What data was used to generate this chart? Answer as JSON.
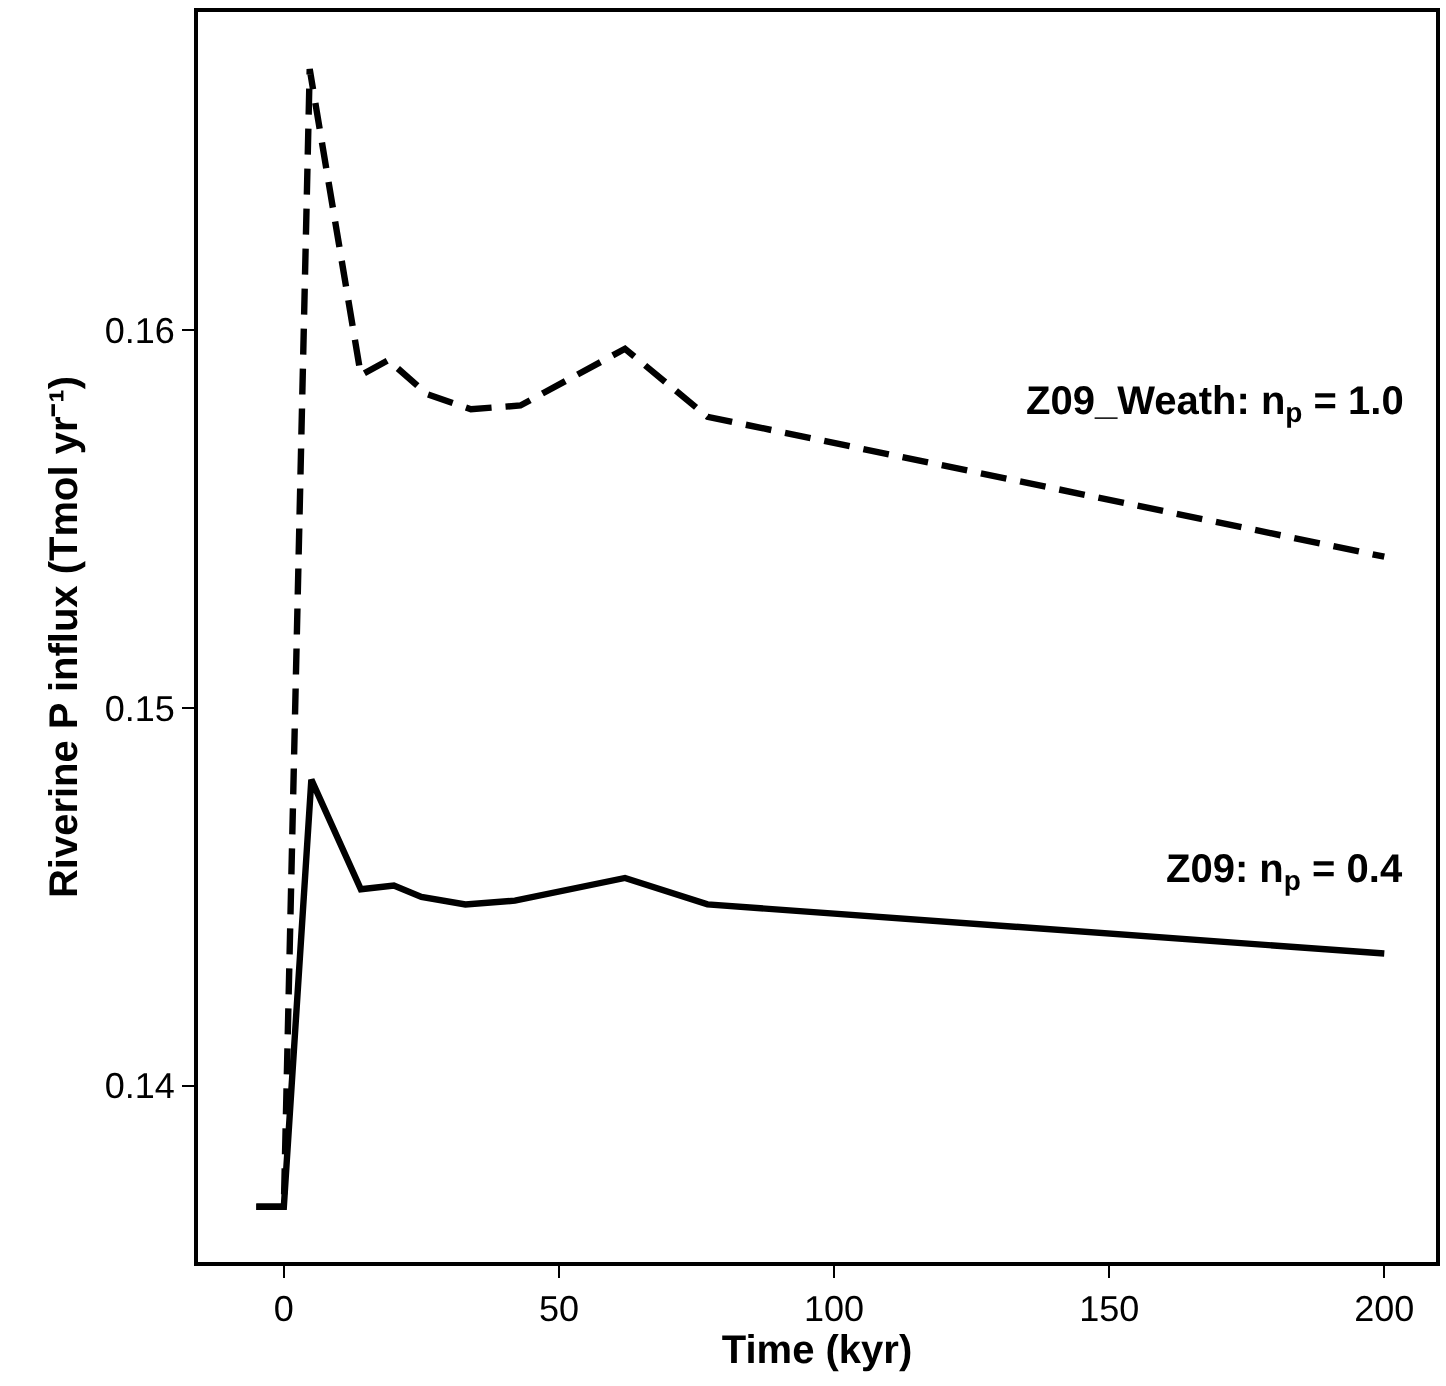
{
  "chart_data": {
    "type": "line",
    "xlabel": "Time (kyr)",
    "ylabel": "Riverine P influx (Tmol yr⁻¹)",
    "xlim": [
      -15.6,
      209.4
    ],
    "xticks": [
      0,
      50,
      100,
      150,
      200
    ],
    "ylim": [
      0.13534,
      0.16841
    ],
    "yticks": [
      0.14,
      0.15,
      0.16
    ],
    "legend": false,
    "marker": "none",
    "series": [
      {
        "name": "Z09_Weath: n$_{p}$ = 1.0",
        "color": "#000000",
        "line_style": "dashed",
        "x": [
          -5,
          0,
          4.7,
          5.5,
          14,
          19,
          26,
          34,
          43,
          62,
          77,
          200
        ],
        "values": [
          0.1368,
          0.1368,
          0.1669,
          0.1662,
          0.1588,
          0.1592,
          0.1583,
          0.1579,
          0.158,
          0.1595,
          0.1577,
          0.154
        ]
      },
      {
        "name": "Z09: n$_{p}$ = 0.4",
        "color": "#000000",
        "line_style": "solid",
        "x": [
          -5,
          0,
          5,
          14,
          20,
          25,
          33,
          42,
          62,
          77,
          200
        ],
        "values": [
          0.1368,
          0.1368,
          0.1481,
          0.1452,
          0.1453,
          0.145,
          0.1448,
          0.1449,
          0.1455,
          0.1448,
          0.1435
        ]
      }
    ]
  }
}
